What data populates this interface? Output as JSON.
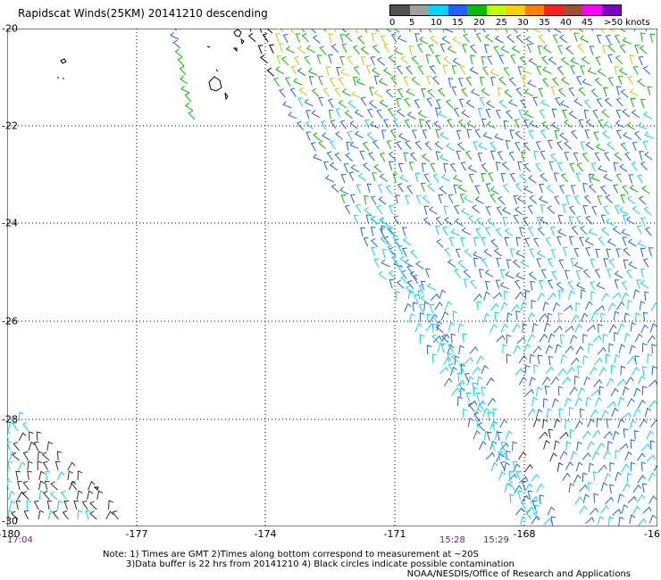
{
  "title": "Rapidscat Winds(25KM) 20141210 descending",
  "legend": {
    "labels": [
      "0",
      "5",
      "10",
      "15",
      "20",
      "25",
      "30",
      "35",
      "40",
      "45",
      ">50 knots"
    ],
    "colors": [
      "#505050",
      "#a0a0a0",
      "#00d8ff",
      "#2060ff",
      "#00c000",
      "#c0ff00",
      "#ffd000",
      "#ff8000",
      "#ff2020",
      "#a05030",
      "#ff00ff",
      "#8000c0"
    ]
  },
  "axes": {
    "x_ticks": [
      "-180",
      "-177",
      "-174",
      "-171",
      "-168",
      "-16"
    ],
    "y_ticks": [
      "-20",
      "-22",
      "-24",
      "-26",
      "-28",
      "-30"
    ]
  },
  "times": [
    "17:04",
    "15:28",
    "15:29"
  ],
  "notes": {
    "line1": "Note:  1) Times are GMT  2)Times along bottom correspond to measurement at ~20S",
    "line2": "3)Data buffer is 22 hrs from 20141210  4) Black circles indicate possible contamination"
  },
  "credit": "NOAA/NESDIS/Office of Research and Applications"
}
